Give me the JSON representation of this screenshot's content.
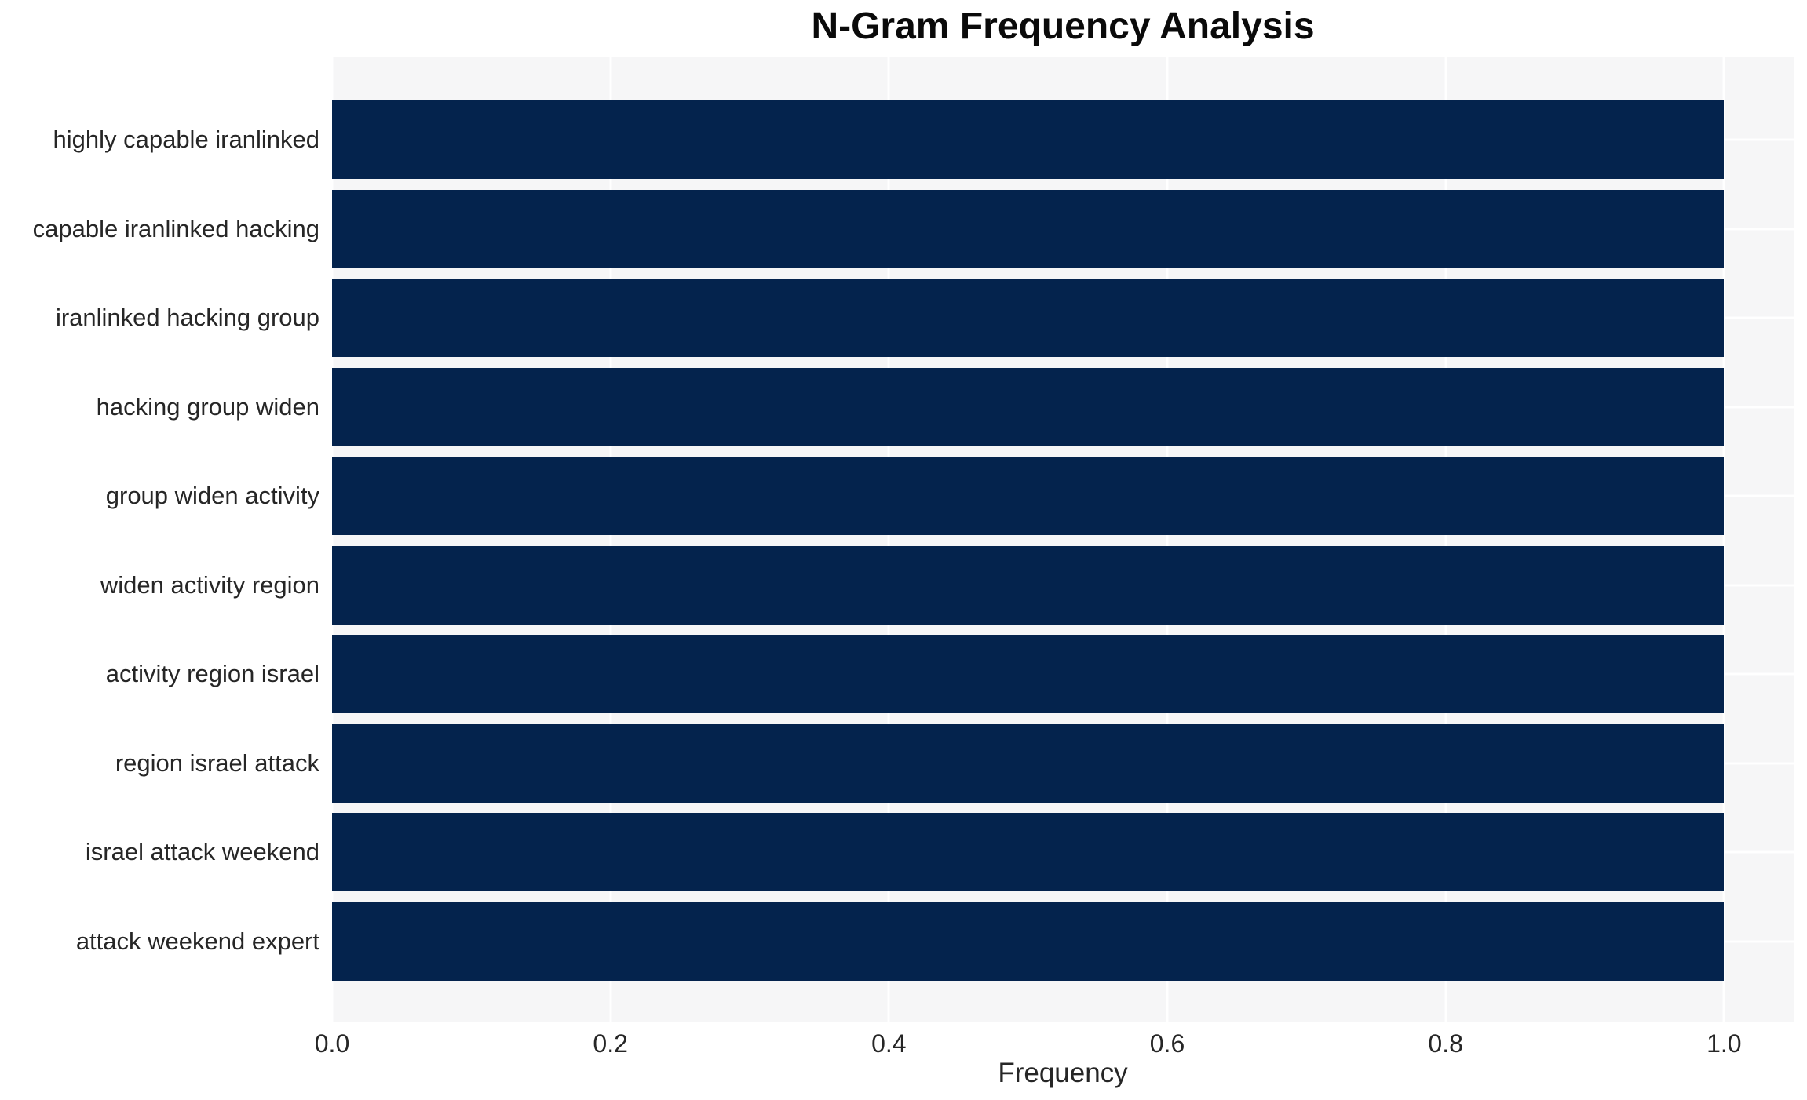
{
  "chart_data": {
    "type": "bar",
    "orientation": "horizontal",
    "title": "N-Gram Frequency Analysis",
    "xlabel": "Frequency",
    "ylabel": "",
    "categories": [
      "highly capable iranlinked",
      "capable iranlinked hacking",
      "iranlinked hacking group",
      "hacking group widen",
      "group widen activity",
      "widen activity region",
      "activity region israel",
      "region israel attack",
      "israel attack weekend",
      "attack weekend expert"
    ],
    "values": [
      1.0,
      1.0,
      1.0,
      1.0,
      1.0,
      1.0,
      1.0,
      1.0,
      1.0,
      1.0
    ],
    "xlim": [
      0,
      1.05
    ],
    "x_ticks": [
      0.0,
      0.2,
      0.4,
      0.6,
      0.8,
      1.0
    ],
    "x_tick_labels": [
      "0.0",
      "0.2",
      "0.4",
      "0.6",
      "0.8",
      "1.0"
    ],
    "grid": true,
    "legend": false,
    "colors": {
      "bar": "#04234d",
      "panel_background": "#f6f6f7",
      "grid_line": "#ffffff",
      "title_text": "#0a0a0a",
      "tick_text": "#262626"
    }
  }
}
